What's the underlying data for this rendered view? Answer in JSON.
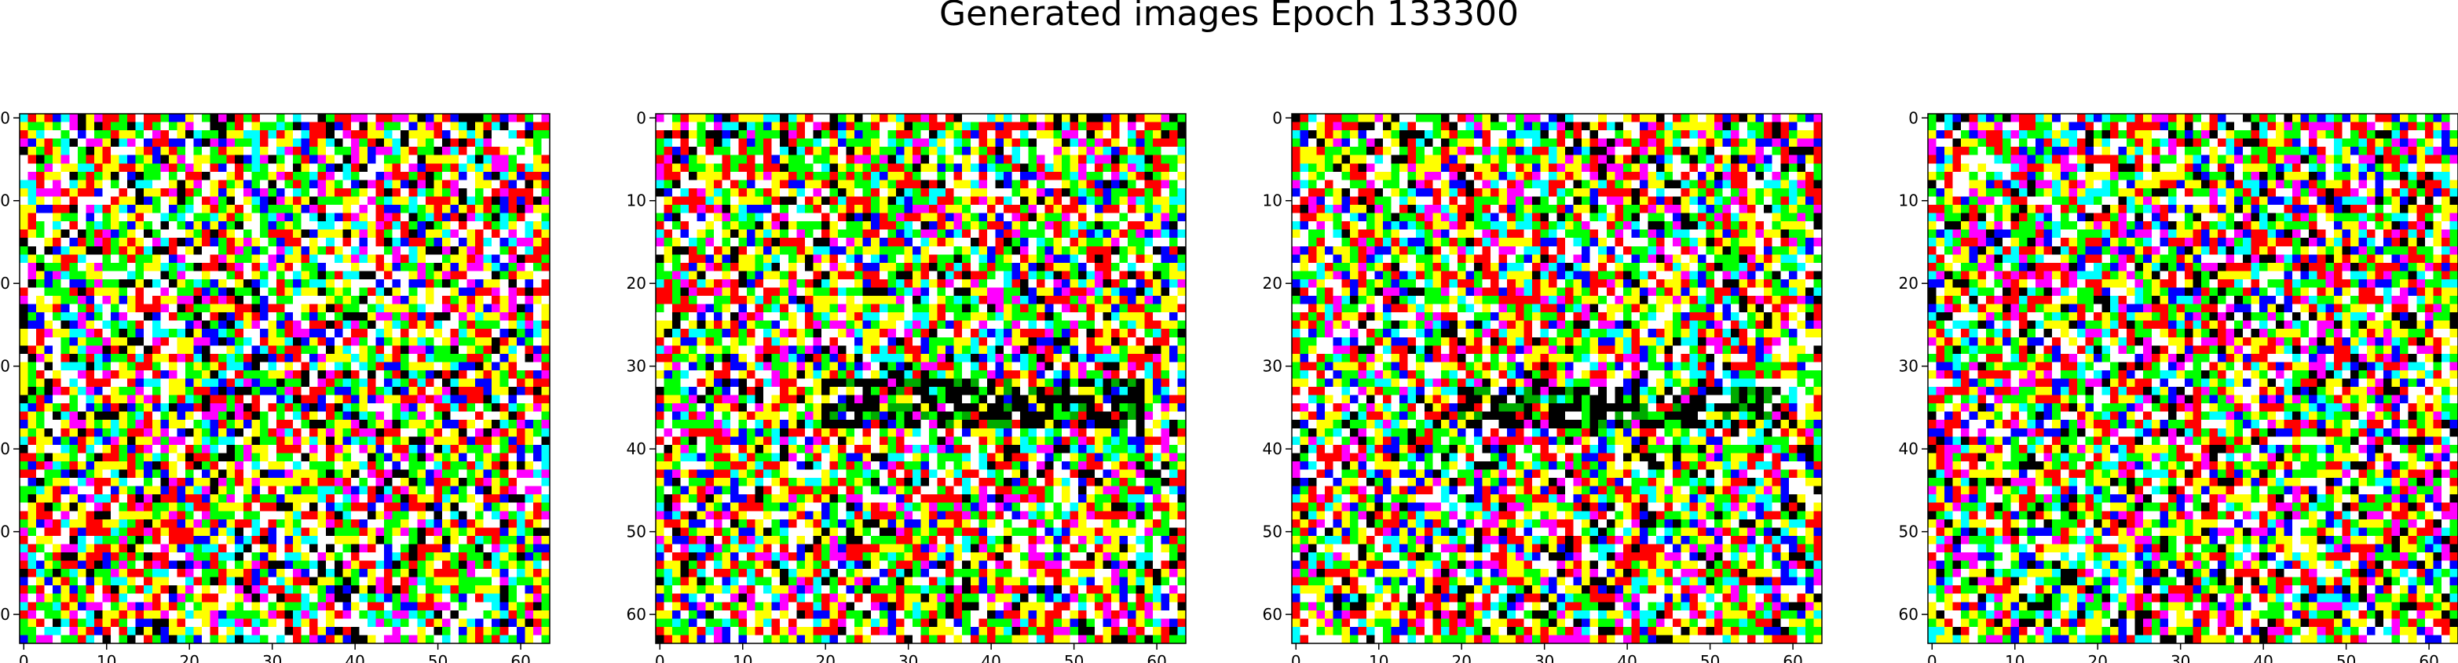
{
  "figure": {
    "title": "Generated images Epoch 133300"
  },
  "chart_data": [
    {
      "type": "heatmap",
      "image_size": 64,
      "xlim": [
        -0.5,
        63.5
      ],
      "ylim": [
        63.5,
        -0.5
      ],
      "xticks": [
        "0",
        "10",
        "20",
        "30",
        "40",
        "50",
        "60"
      ],
      "yticks": [
        "0",
        "10",
        "20",
        "30",
        "40",
        "50",
        "60"
      ],
      "pattern": "random saturated RGB noise (red, green, blue, cyan, magenta, yellow, white, black pixels)",
      "seed": 11,
      "dark_band_rows": null
    },
    {
      "type": "heatmap",
      "image_size": 64,
      "xlim": [
        -0.5,
        63.5
      ],
      "ylim": [
        63.5,
        -0.5
      ],
      "xticks": [
        "0",
        "10",
        "20",
        "30",
        "40",
        "50",
        "60"
      ],
      "yticks": [
        "0",
        "10",
        "20",
        "30",
        "40",
        "50",
        "60"
      ],
      "pattern": "random RGB noise with a dark horizontal band near rows 32-37 and brighter/greener region below",
      "seed": 23,
      "dark_band_rows": [
        32,
        37
      ]
    },
    {
      "type": "heatmap",
      "image_size": 64,
      "xlim": [
        -0.5,
        63.5
      ],
      "ylim": [
        63.5,
        -0.5
      ],
      "xticks": [
        "0",
        "10",
        "20",
        "30",
        "40",
        "50",
        "60"
      ],
      "yticks": [
        "0",
        "10",
        "20",
        "30",
        "40",
        "50",
        "60"
      ],
      "pattern": "random RGB noise with a dark horizontal band near rows 33-37 (columns ~20-58)",
      "seed": 37,
      "dark_band_rows": [
        33,
        37
      ]
    },
    {
      "type": "heatmap",
      "image_size": 64,
      "xlim": [
        -0.5,
        63.5
      ],
      "ylim": [
        63.5,
        -0.5
      ],
      "xticks": [
        "0",
        "10",
        "20",
        "30",
        "40",
        "50",
        "60"
      ],
      "yticks": [
        "0",
        "10",
        "20",
        "30",
        "40",
        "50",
        "60"
      ],
      "pattern": "random saturated RGB noise (red, green, blue, cyan, magenta, yellow, white, black pixels)",
      "seed": 53,
      "dark_band_rows": null
    }
  ]
}
